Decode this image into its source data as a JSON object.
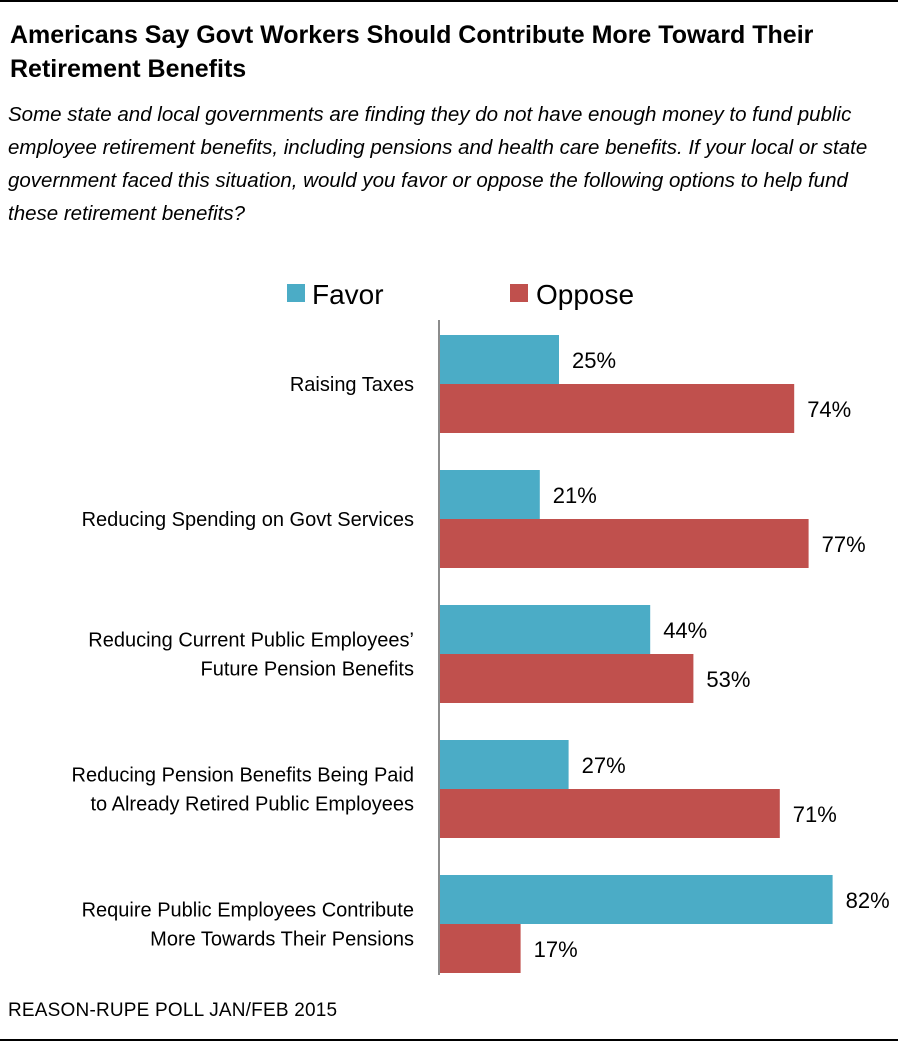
{
  "title": "Americans Say Govt Workers Should Contribute More Toward Their Retirement Benefits",
  "subtitle": "Some state and local governments are finding they do not have enough money to fund public employee retirement benefits, including pensions and health care benefits. If your local or state government faced this situation, would you favor or oppose the following options to help fund these retirement benefits?",
  "source": "REASON-RUPE POLL JAN/FEB 2015",
  "colors": {
    "favor": "#4bacc6",
    "oppose": "#c0504d",
    "axis": "#8c8c8c"
  },
  "chart_data": {
    "type": "bar",
    "orientation": "horizontal",
    "legend_position": "top",
    "grid": false,
    "xlim": [
      0,
      100
    ],
    "categories": [
      [
        "Raising Taxes"
      ],
      [
        "Reducing Spending on Govt Services"
      ],
      [
        "Reducing Current Public Employees’",
        "Future Pension Benefits"
      ],
      [
        "Reducing Pension Benefits Being Paid",
        "to Already Retired Public Employees"
      ],
      [
        "Require Public Employees Contribute",
        "More Towards Their Pensions"
      ]
    ],
    "series": [
      {
        "name": "Favor",
        "values": [
          25,
          21,
          44,
          27,
          82
        ],
        "labels": [
          "25%",
          "21%",
          "44%",
          "27%",
          "82%"
        ]
      },
      {
        "name": "Oppose",
        "values": [
          74,
          77,
          53,
          71,
          17
        ],
        "labels": [
          "74%",
          "77%",
          "53%",
          "71%",
          "17%"
        ]
      }
    ]
  }
}
